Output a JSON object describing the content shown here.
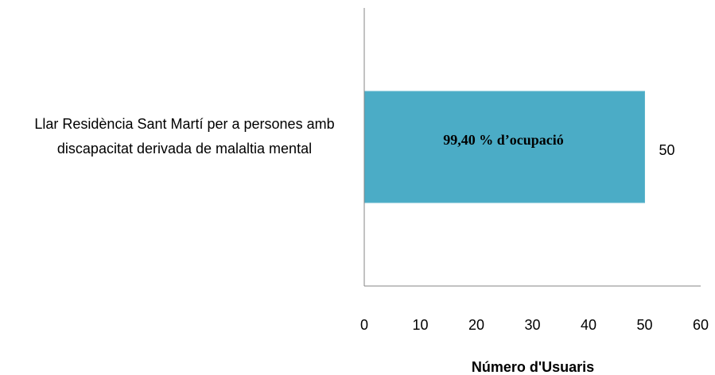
{
  "chart_data": {
    "type": "bar",
    "orientation": "horizontal",
    "categories": [
      "Llar Residència Sant Martí per a persones amb discapacitat derivada de malaltia mental"
    ],
    "values": [
      50
    ],
    "color": "#4bacc6",
    "annotation": "99,40 % d’ocupació",
    "xlabel": "Número d'Usuaris",
    "xlim": [
      0,
      60
    ],
    "xticks": [
      0,
      10,
      20,
      30,
      40,
      50,
      60
    ],
    "grid": false
  }
}
